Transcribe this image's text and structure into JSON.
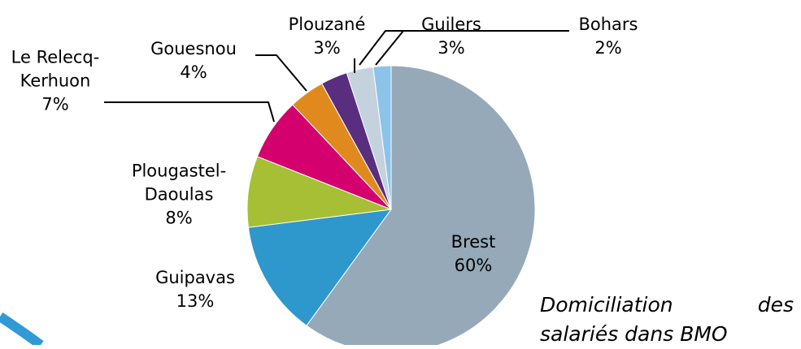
{
  "chart_data": {
    "type": "pie",
    "title": "Domiciliation des salariés dans BMO",
    "categories": [
      "Brest",
      "Guipavas",
      "Plougastel-Daoulas",
      "Le Relecq-Kerhuon",
      "Gouesnou",
      "Plouzané",
      "Guilers",
      "Bohars"
    ],
    "values": [
      60,
      13,
      8,
      7,
      4,
      3,
      3,
      2
    ],
    "value_labels": [
      "60%",
      "13%",
      "8%",
      "7%",
      "4%",
      "3%",
      "3%",
      "2%"
    ],
    "colors": [
      "#95a9b8",
      "#2e97cc",
      "#a6bf34",
      "#d4006e",
      "#e08a1e",
      "#5a2e7e",
      "#c4d2de",
      "#8cc3e8"
    ]
  }
}
